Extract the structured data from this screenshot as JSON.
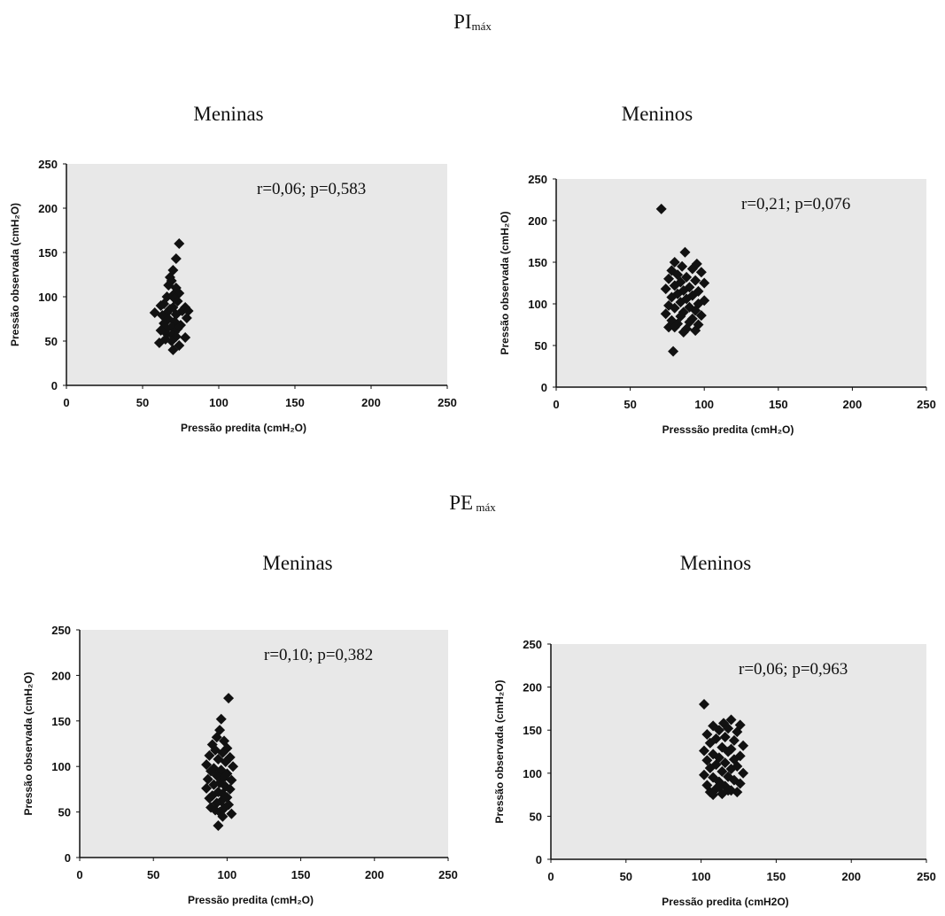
{
  "sections": [
    {
      "main": "PI",
      "sub": "máx"
    },
    {
      "main": "PE",
      "sub": " máx"
    }
  ],
  "chart_data": [
    {
      "type": "scatter",
      "section": "PImáx",
      "title": "Meninas",
      "annotation": "r=0,06; p=0,583",
      "xlabel": "Pressão predita (cmH₂O)",
      "ylabel": "Pressão observada (cmH₂O)",
      "xlim": [
        0,
        250
      ],
      "ylim": [
        0,
        250
      ],
      "xticks": [
        0,
        50,
        100,
        150,
        200,
        250
      ],
      "yticks": [
        0,
        50,
        100,
        150,
        200,
        250
      ],
      "grid": false,
      "x": [
        74,
        72,
        70,
        68,
        69,
        67,
        72,
        74,
        70,
        66,
        71,
        73,
        64,
        62,
        70,
        78,
        68,
        76,
        80,
        66,
        72,
        63,
        79,
        58,
        67,
        71,
        64,
        75,
        69,
        66,
        73,
        62,
        71,
        66,
        70,
        72,
        78,
        65,
        69,
        74,
        61,
        70
      ],
      "y": [
        160,
        143,
        130,
        122,
        118,
        113,
        110,
        104,
        102,
        100,
        98,
        95,
        92,
        90,
        88,
        88,
        86,
        84,
        84,
        82,
        80,
        79,
        76,
        82,
        75,
        72,
        70,
        68,
        66,
        64,
        64,
        62,
        60,
        58,
        56,
        55,
        54,
        52,
        50,
        45,
        48,
        40
      ]
    },
    {
      "type": "scatter",
      "section": "PImáx",
      "title": "Meninos",
      "annotation": "r=0,21; p=0,076",
      "xlabel": "Presssão predita (cmH₂O)",
      "ylabel": "Pressão observada (cmH₂O)",
      "xlim": [
        0,
        250
      ],
      "ylim": [
        0,
        250
      ],
      "xticks": [
        0,
        50,
        100,
        150,
        200,
        250
      ],
      "yticks": [
        0,
        50,
        100,
        150,
        200,
        250
      ],
      "grid": false,
      "x": [
        71,
        87,
        80,
        95,
        85,
        92,
        78,
        98,
        82,
        88,
        76,
        94,
        84,
        100,
        80,
        90,
        74,
        86,
        96,
        82,
        92,
        78,
        88,
        100,
        84,
        96,
        76,
        90,
        80,
        94,
        86,
        74,
        98,
        84,
        92,
        78,
        90,
        82,
        96,
        76,
        88,
        94,
        80,
        86,
        79
      ],
      "y": [
        214,
        162,
        150,
        148,
        145,
        142,
        140,
        138,
        135,
        132,
        130,
        128,
        126,
        125,
        122,
        120,
        118,
        116,
        115,
        112,
        110,
        108,
        106,
        104,
        102,
        100,
        98,
        96,
        95,
        92,
        90,
        88,
        86,
        85,
        82,
        80,
        78,
        76,
        75,
        72,
        70,
        68,
        72,
        66,
        43
      ]
    },
    {
      "type": "scatter",
      "section": "PEmáx",
      "title": "Meninas",
      "annotation": "r=0,10; p=0,382",
      "xlabel": "Pressão predita (cmH₂O)",
      "ylabel": "Pressão observada (cmH₂O)",
      "xlim": [
        0,
        250
      ],
      "ylim": [
        0,
        250
      ],
      "xticks": [
        0,
        50,
        100,
        150,
        200,
        250
      ],
      "yticks": [
        0,
        50,
        100,
        150,
        200,
        250
      ],
      "grid": false,
      "x": [
        101,
        96,
        95,
        93,
        98,
        90,
        100,
        92,
        97,
        88,
        102,
        94,
        99,
        86,
        104,
        91,
        96,
        89,
        100,
        93,
        98,
        87,
        103,
        95,
        91,
        99,
        86,
        102,
        94,
        97,
        90,
        100,
        88,
        96,
        93,
        101,
        89,
        98,
        92,
        95,
        103,
        97,
        94
      ],
      "y": [
        175,
        152,
        140,
        132,
        128,
        124,
        120,
        118,
        115,
        112,
        110,
        108,
        105,
        102,
        100,
        98,
        96,
        95,
        92,
        90,
        88,
        86,
        85,
        82,
        80,
        78,
        76,
        75,
        72,
        70,
        68,
        66,
        65,
        62,
        60,
        58,
        55,
        54,
        52,
        50,
        48,
        45,
        35
      ]
    },
    {
      "type": "scatter",
      "section": "PEmáx",
      "title": "Meninos",
      "annotation": "r=0,06; p=0,963",
      "xlabel": "Pressão predita (cmH2O)",
      "ylabel": "Pressão observada (cmH₂O)",
      "xlim": [
        0,
        250
      ],
      "ylim": [
        0,
        250
      ],
      "xticks": [
        0,
        50,
        100,
        150,
        200,
        250
      ],
      "yticks": [
        0,
        50,
        100,
        150,
        200,
        250
      ],
      "grid": false,
      "x": [
        102,
        120,
        115,
        126,
        108,
        118,
        112,
        124,
        104,
        116,
        110,
        122,
        106,
        128,
        114,
        120,
        102,
        118,
        108,
        126,
        112,
        122,
        104,
        116,
        110,
        124,
        106,
        120,
        114,
        128,
        102,
        118,
        108,
        122,
        112,
        126,
        104,
        116,
        110,
        120,
        106,
        124,
        114,
        118,
        112,
        108
      ],
      "y": [
        180,
        162,
        158,
        156,
        155,
        152,
        150,
        148,
        145,
        142,
        140,
        138,
        135,
        132,
        130,
        128,
        126,
        125,
        122,
        120,
        118,
        116,
        115,
        112,
        110,
        108,
        106,
        105,
        102,
        100,
        98,
        96,
        95,
        92,
        90,
        88,
        86,
        85,
        82,
        80,
        78,
        78,
        76,
        80,
        84,
        75
      ]
    }
  ]
}
